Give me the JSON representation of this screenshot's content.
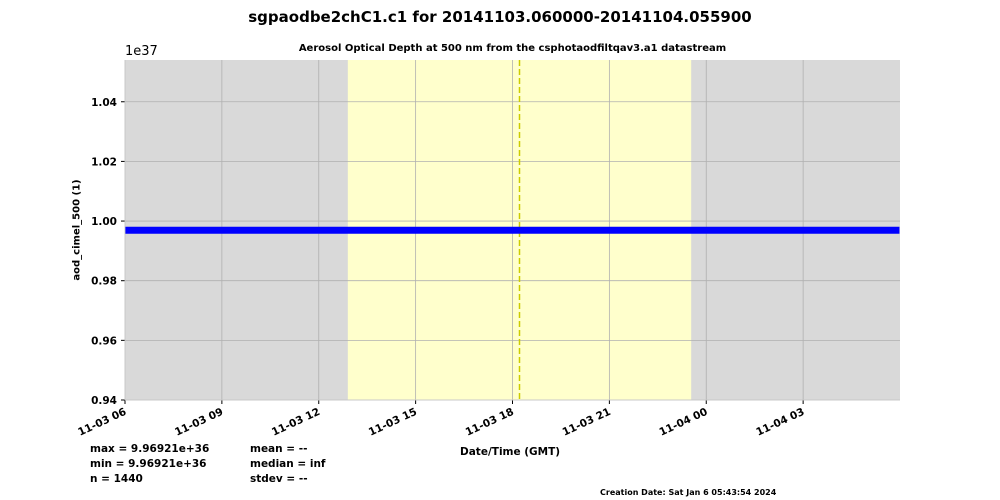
{
  "title": "sgpaodbe2chC1.c1 for 20141103.060000-20141104.055900",
  "stats": {
    "max": "max = 9.96921e+36",
    "min": "min = 9.96921e+36",
    "n": "n = 1440",
    "mean": "mean = --",
    "median": "median = inf",
    "stdev": "stdev = --"
  },
  "creation_date": "Creation Date: Sat Jan  6 05:43:54 2024",
  "chart_data": {
    "type": "line",
    "title": "Aerosol Optical Depth at 500 nm from the csphotaodfiltqav3.a1 datastream",
    "xlabel": "Date/Time (GMT)",
    "ylabel": "aod_cimel_500 (1)",
    "y_offset_label": "1e37",
    "xlim": [
      "2014-11-03 06:00",
      "2014-11-04 06:00"
    ],
    "ylim": [
      0.94,
      1.054
    ],
    "grid": true,
    "x_ticks": [
      {
        "t": "2014-11-03 06:00",
        "label": "11-03 06"
      },
      {
        "t": "2014-11-03 09:00",
        "label": "11-03 09"
      },
      {
        "t": "2014-11-03 12:00",
        "label": "11-03 12"
      },
      {
        "t": "2014-11-03 15:00",
        "label": "11-03 15"
      },
      {
        "t": "2014-11-03 18:00",
        "label": "11-03 18"
      },
      {
        "t": "2014-11-03 21:00",
        "label": "11-03 21"
      },
      {
        "t": "2014-11-04 00:00",
        "label": "11-04 00"
      },
      {
        "t": "2014-11-04 03:00",
        "label": "11-04 03"
      }
    ],
    "y_ticks": [
      0.94,
      0.96,
      0.98,
      1.0,
      1.02,
      1.04
    ],
    "y_tick_labels": [
      "0.94",
      "0.96",
      "0.98",
      "1.00",
      "1.02",
      "1.04"
    ],
    "daylight_span": [
      "2014-11-03 12:54",
      "2014-11-03 23:32"
    ],
    "solar_noon": "2014-11-03 18:13",
    "series": [
      {
        "x": [
          "2014-11-03 06:00",
          "2014-11-04 05:59"
        ],
        "y": [
          0.996921,
          0.996921
        ],
        "color": "#0000ff"
      }
    ],
    "colors": {
      "night": "#d9d9d9",
      "day": "#ffffcc",
      "noon_line": "#cccc00",
      "grid": "#b0b0b0"
    }
  }
}
